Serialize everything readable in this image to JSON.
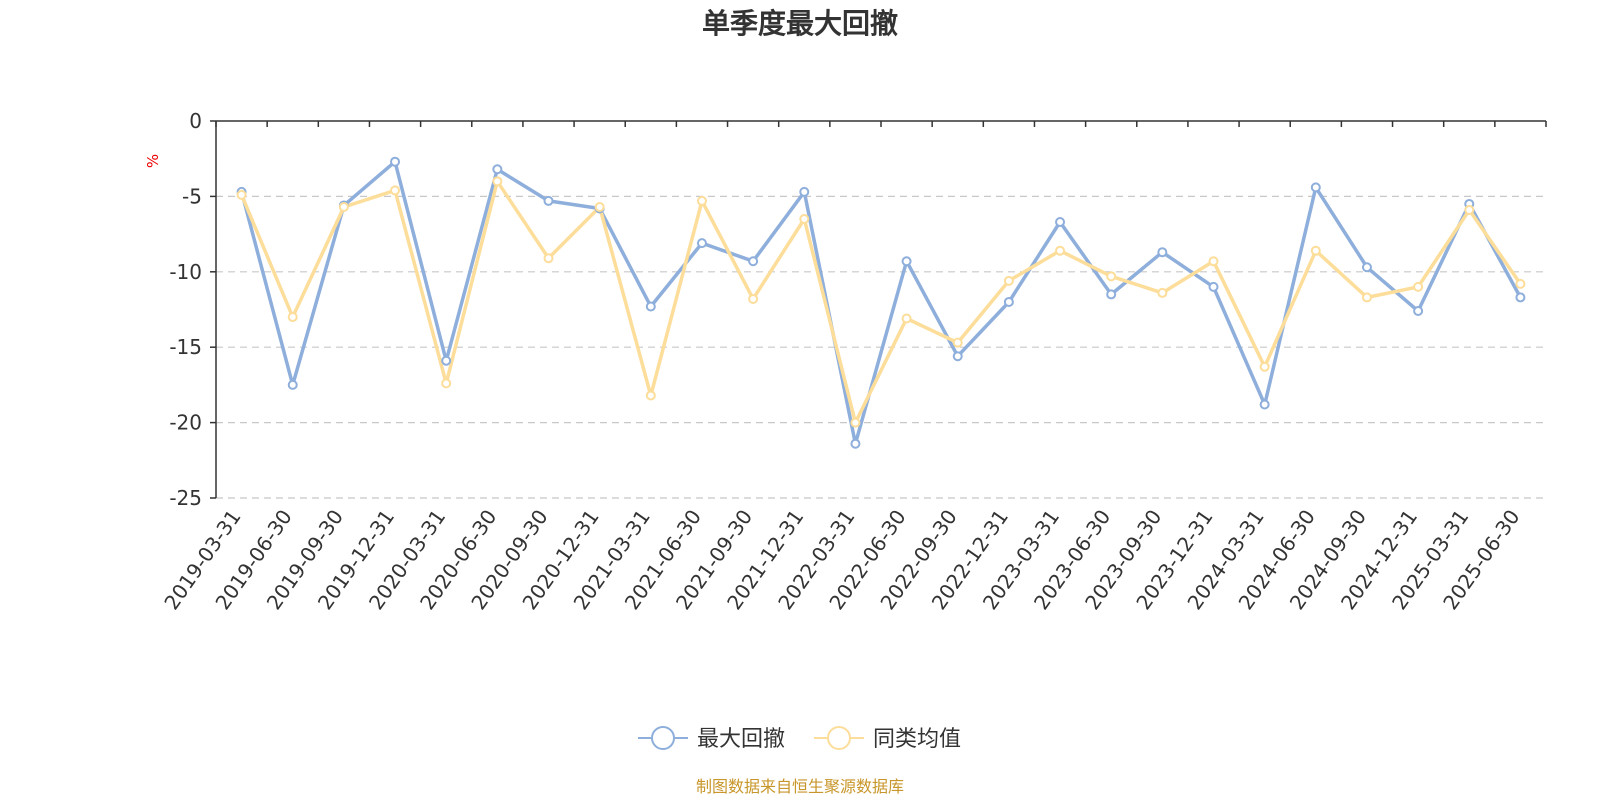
{
  "chart_data": {
    "type": "line",
    "title": "单季度最大回撤",
    "ylabel": "%",
    "ylim": [
      -25,
      0
    ],
    "yticks": [
      0,
      -5,
      -10,
      -15,
      -20,
      -25
    ],
    "grid": "horizontal-dashed",
    "legend_position": "bottom-center",
    "categories": [
      "2019-03-31",
      "2019-06-30",
      "2019-09-30",
      "2019-12-31",
      "2020-03-31",
      "2020-06-30",
      "2020-09-30",
      "2020-12-31",
      "2021-03-31",
      "2021-06-30",
      "2021-09-30",
      "2021-12-31",
      "2022-03-31",
      "2022-06-30",
      "2022-09-30",
      "2022-12-31",
      "2023-03-31",
      "2023-06-30",
      "2023-09-30",
      "2023-12-31",
      "2024-03-31",
      "2024-06-30",
      "2024-09-30",
      "2024-12-31",
      "2025-03-31",
      "2025-06-30"
    ],
    "series": [
      {
        "name": "最大回撤",
        "color": "#8eaedb",
        "values": [
          -4.7,
          -17.5,
          -5.6,
          -2.7,
          -15.9,
          -3.2,
          -5.3,
          -5.8,
          -12.3,
          -8.1,
          -9.3,
          -4.7,
          -21.4,
          -9.3,
          -15.6,
          -12.0,
          -6.7,
          -11.5,
          -8.7,
          -11.0,
          -18.8,
          -4.4,
          -9.7,
          -12.6,
          -5.5,
          -11.7
        ]
      },
      {
        "name": "同类均值",
        "color": "#fddd9a",
        "values": [
          -4.9,
          -13.0,
          -5.7,
          -4.6,
          -17.4,
          -4.0,
          -9.1,
          -5.7,
          -18.2,
          -5.3,
          -11.8,
          -6.5,
          -20.0,
          -13.1,
          -14.7,
          -10.6,
          -8.6,
          -10.3,
          -11.4,
          -9.3,
          -16.3,
          -8.6,
          -11.7,
          -11.0,
          -5.9,
          -10.8
        ]
      }
    ],
    "source_note": "制图数据来自恒生聚源数据库",
    "colors": {
      "axis": "#333333",
      "grid": "#c8c8c8",
      "unit_label": "#ee0000",
      "source_text": "#c8962a"
    }
  }
}
